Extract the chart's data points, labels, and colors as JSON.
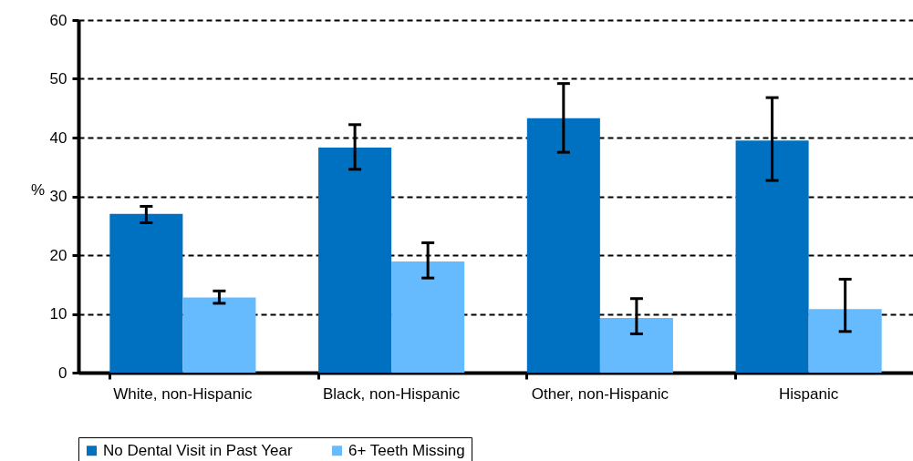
{
  "chart_data": {
    "type": "bar",
    "ylabel": "%",
    "categories": [
      "White, non-Hispanic",
      "Black, non-Hispanic",
      "Other, non-Hispanic",
      "Hispanic"
    ],
    "series": [
      {
        "name": "No Dental Visit in Past Year",
        "color": "#0070c0",
        "values": [
          27.0,
          38.3,
          43.3,
          39.5
        ],
        "errors": [
          [
            25.5,
            28.3
          ],
          [
            34.6,
            42.2
          ],
          [
            37.5,
            49.2
          ],
          [
            32.7,
            46.8
          ]
        ]
      },
      {
        "name": "6+ Teeth Missing",
        "color": "#66bbff",
        "values": [
          12.8,
          18.9,
          9.3,
          10.8
        ],
        "errors": [
          [
            11.8,
            13.9
          ],
          [
            16.1,
            22.1
          ],
          [
            6.6,
            12.6
          ],
          [
            7.0,
            15.9
          ]
        ]
      }
    ],
    "ylim": [
      0,
      60
    ],
    "yticks": [
      0,
      10,
      20,
      30,
      40,
      50,
      60
    ],
    "grid": "y",
    "legend": "bottom"
  }
}
